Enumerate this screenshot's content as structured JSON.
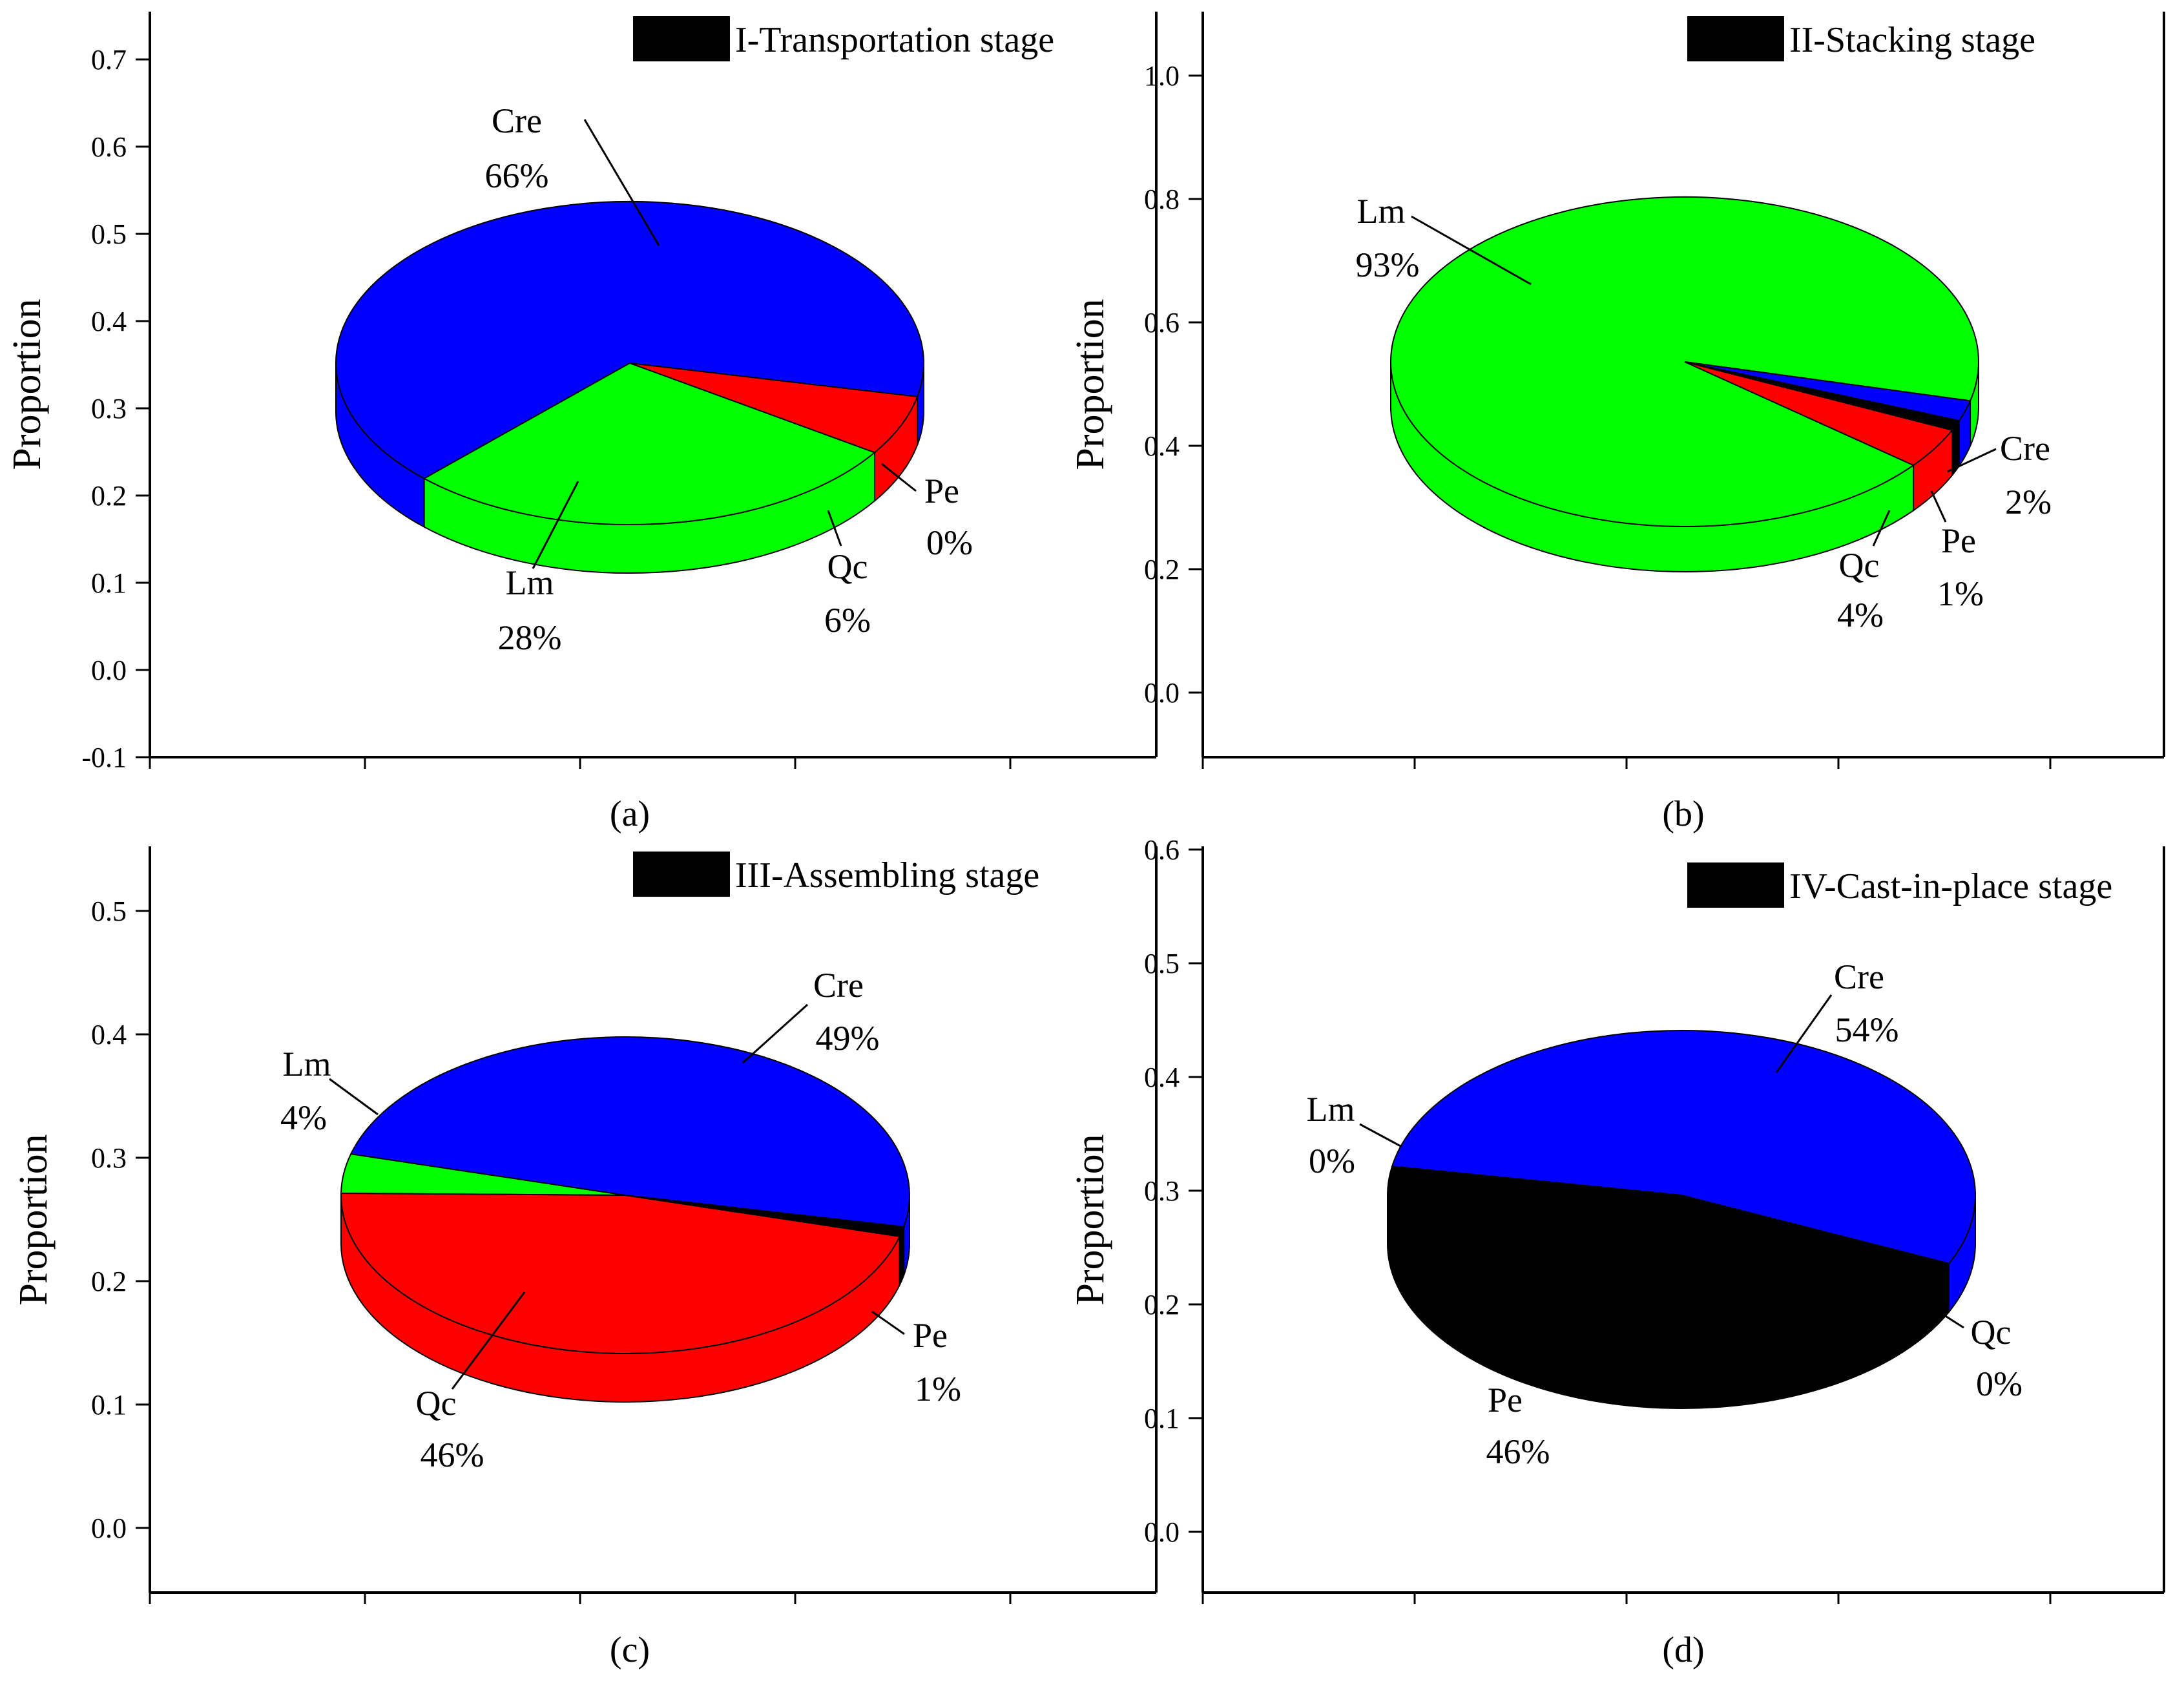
{
  "chart_data": [
    {
      "type": "pie",
      "panel_label": "(a)",
      "legend": "I-Transportation stage",
      "ylabel": "Proportion",
      "yticks": [
        "-0.1",
        "0.0",
        "0.1",
        "0.2",
        "0.3",
        "0.4",
        "0.5",
        "0.6",
        "0.7"
      ],
      "slices": [
        {
          "name": "Cre",
          "value": 66,
          "pct_label": "66%",
          "color": "#0000ff"
        },
        {
          "name": "Lm",
          "value": 28,
          "pct_label": "28%",
          "color": "#00ff00"
        },
        {
          "name": "Qc",
          "value": 6,
          "pct_label": "6%",
          "color": "#ff0000"
        },
        {
          "name": "Pe",
          "value": 0,
          "pct_label": "0%",
          "color": "#000000"
        }
      ]
    },
    {
      "type": "pie",
      "panel_label": "(b)",
      "legend": "II-Stacking stage",
      "ylabel": "Proportion",
      "yticks": [
        "0.0",
        "0.2",
        "0.4",
        "0.6",
        "0.8",
        "1.0"
      ],
      "slices": [
        {
          "name": "Lm",
          "value": 93,
          "pct_label": "93%",
          "color": "#00ff00"
        },
        {
          "name": "Qc",
          "value": 4,
          "pct_label": "4%",
          "color": "#ff0000"
        },
        {
          "name": "Pe",
          "value": 1,
          "pct_label": "1%",
          "color": "#000000"
        },
        {
          "name": "Cre",
          "value": 2,
          "pct_label": "2%",
          "color": "#0000ff"
        }
      ]
    },
    {
      "type": "pie",
      "panel_label": "(c)",
      "legend": "III-Assembling stage",
      "ylabel": "Proportion",
      "yticks": [
        "0.0",
        "0.1",
        "0.2",
        "0.3",
        "0.4",
        "0.5"
      ],
      "slices": [
        {
          "name": "Cre",
          "value": 49,
          "pct_label": "49%",
          "color": "#0000ff"
        },
        {
          "name": "Lm",
          "value": 4,
          "pct_label": "4%",
          "color": "#00ff00"
        },
        {
          "name": "Qc",
          "value": 46,
          "pct_label": "46%",
          "color": "#ff0000"
        },
        {
          "name": "Pe",
          "value": 1,
          "pct_label": "1%",
          "color": "#000000"
        }
      ]
    },
    {
      "type": "pie",
      "panel_label": "(d)",
      "legend": "IV-Cast-in-place stage",
      "ylabel": "Proportion",
      "yticks": [
        "0.0",
        "0.1",
        "0.2",
        "0.3",
        "0.4",
        "0.5",
        "0.6"
      ],
      "slices": [
        {
          "name": "Cre",
          "value": 54,
          "pct_label": "54%",
          "color": "#0000ff"
        },
        {
          "name": "Lm",
          "value": 0,
          "pct_label": "0%",
          "color": "#00ff00"
        },
        {
          "name": "Pe",
          "value": 46,
          "pct_label": "46%",
          "color": "#000000"
        },
        {
          "name": "Qc",
          "value": 0,
          "pct_label": "0%",
          "color": "#ff0000"
        }
      ]
    }
  ]
}
